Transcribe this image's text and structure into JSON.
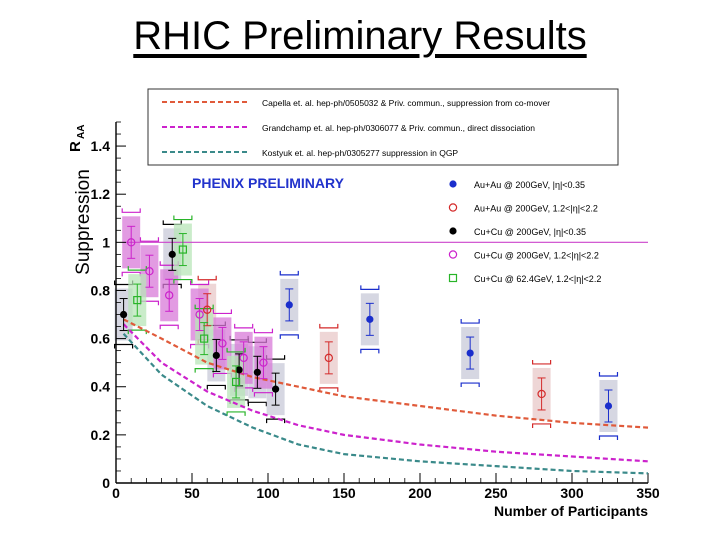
{
  "slide": {
    "title": "RHIC Preliminary Results",
    "side_label": "Suppression"
  },
  "chart_data": {
    "type": "scatter",
    "title": "PHENIX PRELIMINARY",
    "xlabel": "Number of Participants",
    "ylabel": "R",
    "ylabel_sub": "AA",
    "xlim": [
      0,
      350
    ],
    "ylim": [
      0,
      1.5
    ],
    "xticks": [
      "0",
      "50",
      "100",
      "150",
      "200",
      "250",
      "300",
      "350"
    ],
    "yticks": [
      "0",
      "0.2",
      "0.4",
      "0.6",
      "0.8",
      "1",
      "1.2",
      "1.4"
    ],
    "reference_line": 1,
    "model_curves": [
      {
        "label": "Capella et. al. hep-ph/0505032 & Priv. commun., suppression from co-mover",
        "color": "#e05a3a",
        "x": [
          5,
          30,
          60,
          90,
          120,
          150,
          200,
          250,
          300,
          350
        ],
        "y": [
          0.68,
          0.6,
          0.5,
          0.44,
          0.4,
          0.36,
          0.32,
          0.28,
          0.25,
          0.23
        ]
      },
      {
        "label": "Grandchamp et. al. hep-ph/0306077 & Priv. commun., direct dissociation",
        "color": "#cc22cc",
        "x": [
          5,
          30,
          60,
          90,
          120,
          150,
          200,
          250,
          300,
          350
        ],
        "y": [
          0.66,
          0.5,
          0.38,
          0.3,
          0.24,
          0.2,
          0.16,
          0.13,
          0.11,
          0.09
        ]
      },
      {
        "label": "Kostyuk et. al. hep-ph/0305277 suppression in QGP",
        "color": "#3a8a8a",
        "x": [
          5,
          30,
          60,
          90,
          120,
          150,
          200,
          250,
          300,
          350
        ],
        "y": [
          0.62,
          0.45,
          0.32,
          0.23,
          0.16,
          0.12,
          0.09,
          0.07,
          0.05,
          0.04
        ]
      }
    ],
    "series": [
      {
        "name": "Au+Au @ 200GeV, |η|<0.35",
        "color": "#1a2ecc",
        "marker": "filled-circle",
        "x": [
          114,
          167,
          233,
          324
        ],
        "y": [
          0.74,
          0.68,
          0.54,
          0.32
        ]
      },
      {
        "name": "Au+Au @ 200GeV, 1.2<|η|<2.2",
        "color": "#d42a2a",
        "marker": "open-circle",
        "x": [
          60,
          140,
          280
        ],
        "y": [
          0.72,
          0.52,
          0.37
        ]
      },
      {
        "name": "Cu+Cu @ 200GeV, |η|<0.35",
        "color": "#000000",
        "marker": "filled-circle",
        "x": [
          5,
          37,
          66,
          81,
          93,
          105
        ],
        "y": [
          0.7,
          0.95,
          0.53,
          0.47,
          0.46,
          0.39
        ]
      },
      {
        "name": "Cu+Cu @ 200GeV, 1.2<|η|<2.2",
        "color": "#cc22cc",
        "marker": "open-circle",
        "x": [
          10,
          22,
          35,
          55,
          70,
          84,
          97
        ],
        "y": [
          1.0,
          0.88,
          0.78,
          0.7,
          0.58,
          0.52,
          0.5
        ]
      },
      {
        "name": "Cu+Cu @ 62.4GeV, 1.2<|η|<2.2",
        "color": "#28b428",
        "marker": "open-square",
        "x": [
          14,
          44,
          58,
          79
        ],
        "y": [
          0.76,
          0.97,
          0.6,
          0.42
        ]
      }
    ]
  }
}
